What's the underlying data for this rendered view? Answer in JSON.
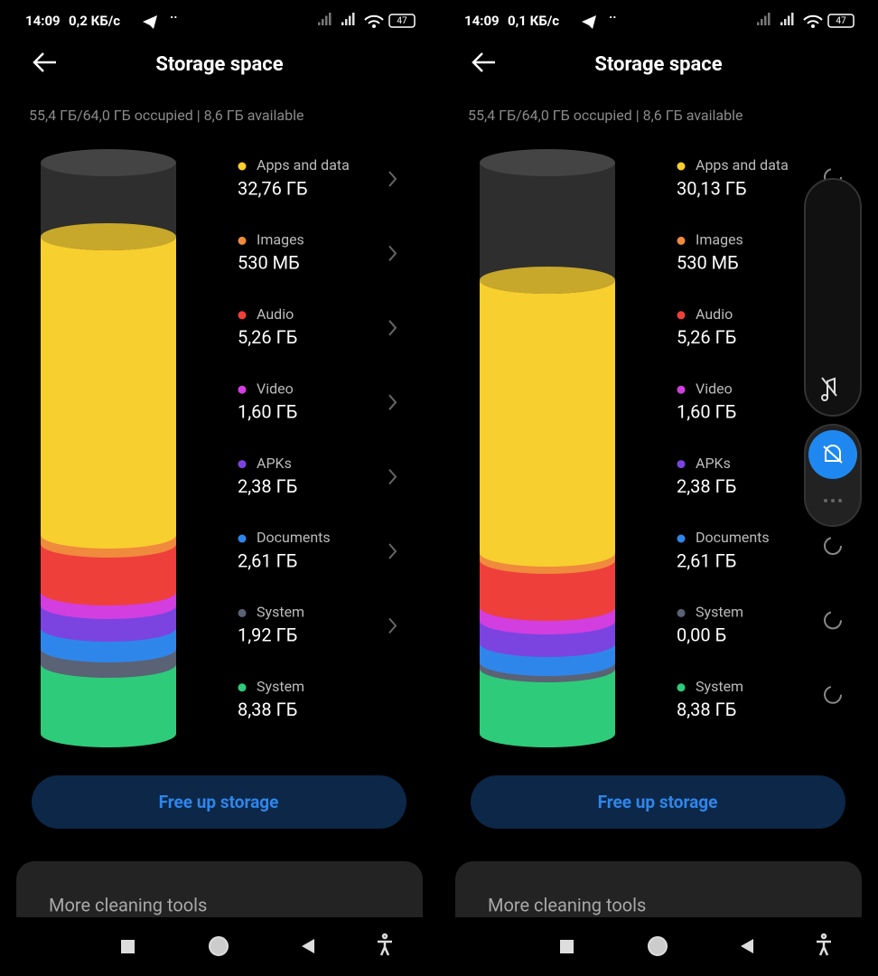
{
  "screens": [
    {
      "status": {
        "time": "14:09",
        "speed": "0,2 КБ/с",
        "battery": "47"
      },
      "header": {
        "title": "Storage space"
      },
      "summary": "55,4 ГБ/64,0 ГБ occupied | 8,6 ГБ available",
      "items": [
        {
          "label": "Apps and data",
          "size": "32,76 ГБ",
          "color": "#f7cf2e"
        },
        {
          "label": "Images",
          "size": "530 МБ",
          "color": "#f08a3c"
        },
        {
          "label": "Audio",
          "size": "5,26 ГБ",
          "color": "#ef3f3b"
        },
        {
          "label": "Video",
          "size": "1,60 ГБ",
          "color": "#d23ee0"
        },
        {
          "label": "APKs",
          "size": "2,38 ГБ",
          "color": "#7b44e0"
        },
        {
          "label": "Documents",
          "size": "2,61 ГБ",
          "color": "#2f86ea"
        },
        {
          "label": "System",
          "size": "1,92 ГБ",
          "color": "#5a6275"
        },
        {
          "label": "System",
          "size": "8,38 ГБ",
          "color": "#2ecb7a"
        }
      ],
      "button": "Free up storage",
      "card": "More cleaning tools"
    },
    {
      "status": {
        "time": "14:09",
        "speed": "0,1 КБ/с",
        "battery": "47"
      },
      "header": {
        "title": "Storage space"
      },
      "summary": "55,4 ГБ/64,0 ГБ occupied | 8,6 ГБ available",
      "items": [
        {
          "label": "Apps and data",
          "size": "30,13 ГБ",
          "color": "#f7cf2e"
        },
        {
          "label": "Images",
          "size": "530 МБ",
          "color": "#f08a3c"
        },
        {
          "label": "Audio",
          "size": "5,26 ГБ",
          "color": "#ef3f3b"
        },
        {
          "label": "Video",
          "size": "1,60 ГБ",
          "color": "#d23ee0"
        },
        {
          "label": "APKs",
          "size": "2,38 ГБ",
          "color": "#7b44e0"
        },
        {
          "label": "Documents",
          "size": "2,61 ГБ",
          "color": "#2f86ea"
        },
        {
          "label": "System",
          "size": "0,00 Б",
          "color": "#5a6275"
        },
        {
          "label": "System",
          "size": "8,38 ГБ",
          "color": "#2ecb7a"
        }
      ],
      "button": "Free up storage",
      "card": "More cleaning tools"
    }
  ]
}
